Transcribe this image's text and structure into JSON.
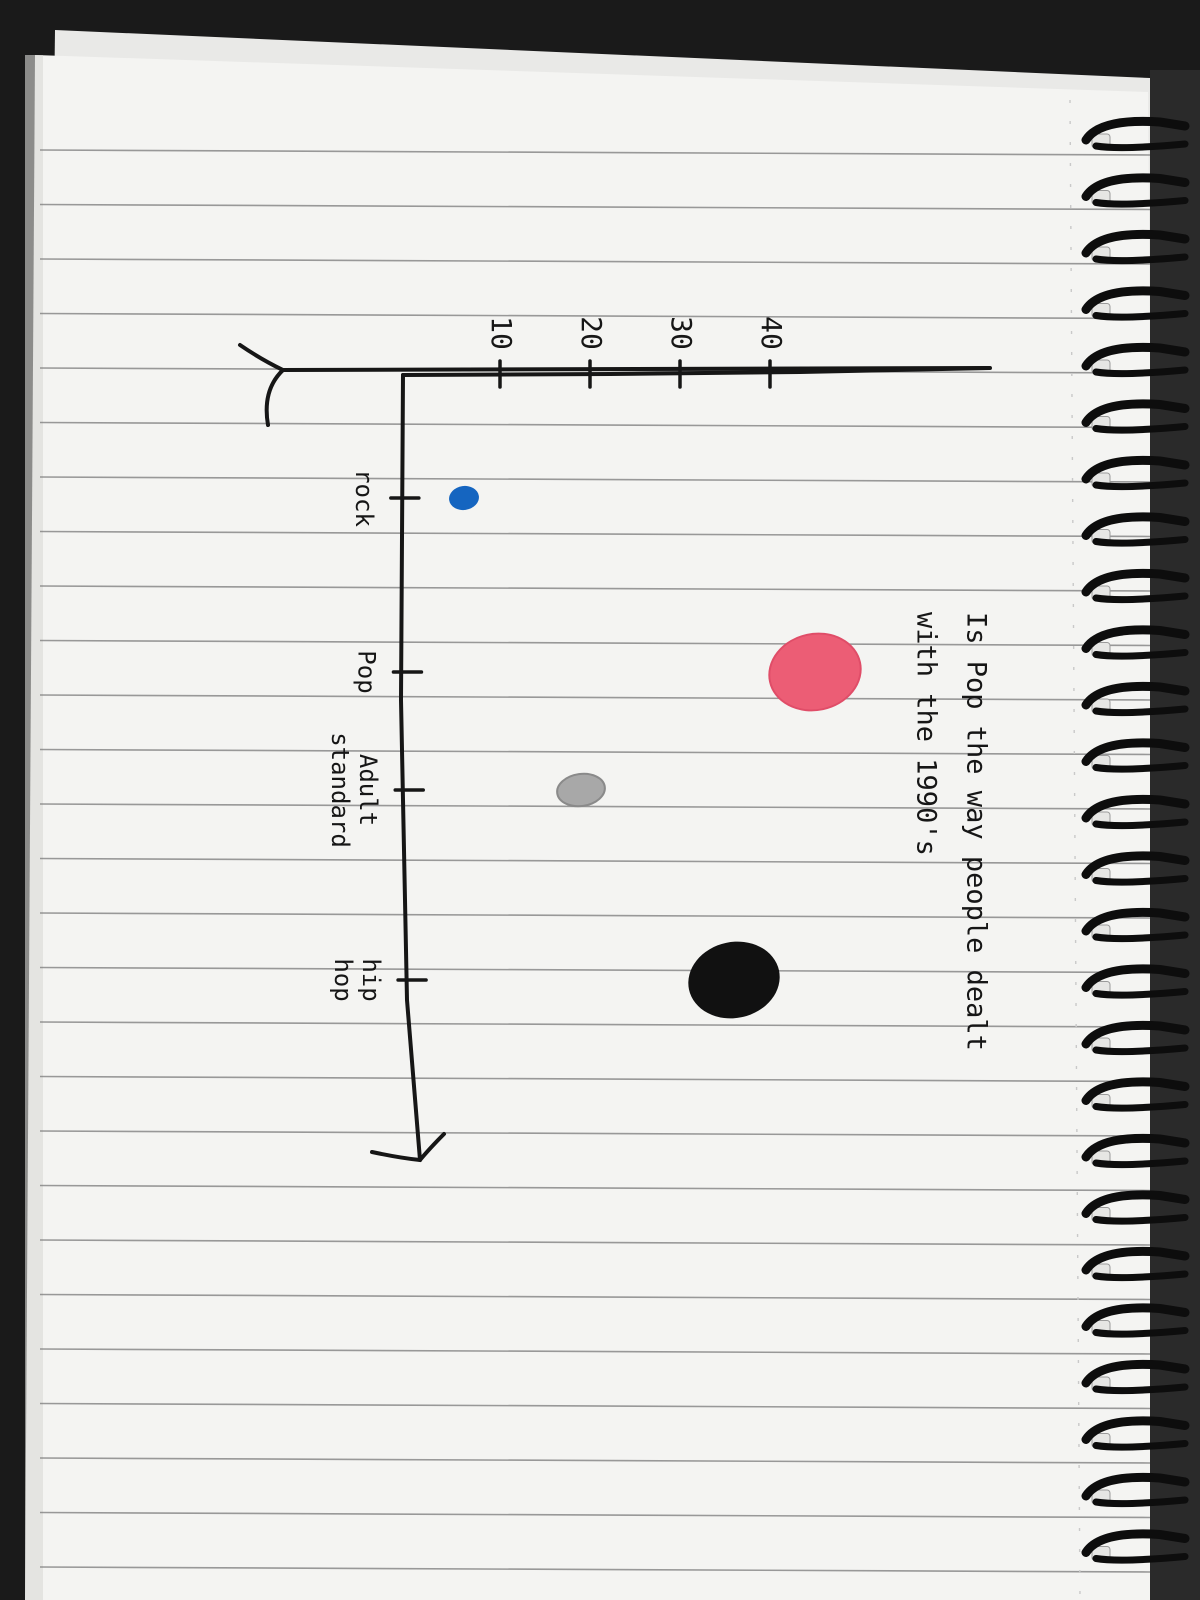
{
  "chart_data": {
    "type": "scatter",
    "title_lines": [
      "Is Pop the way people dealt",
      "with the 1990's"
    ],
    "xlabel": "",
    "ylabel": "",
    "categories": [
      "rock",
      "Pop",
      "Adult standard",
      "hip hop"
    ],
    "category_lines": [
      [
        "rock"
      ],
      [
        "Pop"
      ],
      [
        "Adult",
        "standard"
      ],
      [
        "hip",
        "hop"
      ]
    ],
    "y_ticks": [
      "10",
      "20",
      "30",
      "40"
    ],
    "ylim": [
      0,
      50
    ],
    "points": [
      {
        "category": "rock",
        "value": 6,
        "color": "#1565c0",
        "size": "small"
      },
      {
        "category": "Pop",
        "value": 45,
        "color": "#ec5d75",
        "size": "large"
      },
      {
        "category": "Adult standard",
        "value": 19,
        "color": "#a8a8a8",
        "size": "small"
      },
      {
        "category": "hip hop",
        "value": 36,
        "color": "#111111",
        "size": "large"
      }
    ],
    "grid": false,
    "orientation": "page rotated 90 degrees clockwise"
  },
  "colors": {
    "paper": "#f4f4f2",
    "rule_line": "#7a7a7a",
    "ink": "#161616",
    "background": "#1a1a1a",
    "spiral": "#0d0d0d"
  }
}
